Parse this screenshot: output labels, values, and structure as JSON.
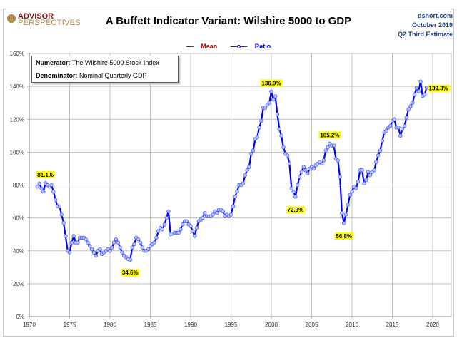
{
  "header": {
    "logo": "ADVISOR PERSPECTIVES",
    "logo_top": "ADVISOR",
    "logo_bottom": "PERSPECTIVES",
    "source": "dshort.com",
    "date": "October 2019",
    "estimate": "Q2 Third Estimate"
  },
  "note": {
    "numerator_label": "Numerator:",
    "numerator": "The Wilshire 5000 Stock Index",
    "denominator_label": "Denominator:",
    "denominator": "Nominal Quarterly GDP"
  },
  "colors": {
    "ratio": "#0000ff",
    "marker_fill": "#b8c4ff",
    "mean": "#c00000",
    "label_bg": "#ffff00"
  },
  "chart_data": {
    "type": "line",
    "title": "A Buffett Indicator Variant: Wilshire 5000 to GDP",
    "xlabel": "",
    "ylabel": "",
    "xlim": [
      1970,
      2020
    ],
    "ylim": [
      0,
      160
    ],
    "x_ticks": [
      "1970",
      "1975",
      "1980",
      "1985",
      "1990",
      "1995",
      "2000",
      "2005",
      "2010",
      "2015",
      "2020"
    ],
    "y_ticks": [
      "0%",
      "20%",
      "40%",
      "60%",
      "80%",
      "100%",
      "120%",
      "140%",
      "160%"
    ],
    "grid": true,
    "legend_placement": "top",
    "legend": [
      "Mean",
      "Ratio"
    ],
    "series": [
      {
        "name": "Ratio",
        "x": [
          1971,
          1971.25,
          1971.5,
          1971.75,
          1972,
          1972.25,
          1972.5,
          1972.75,
          1973,
          1973.25,
          1973.5,
          1973.75,
          1974,
          1974.25,
          1974.5,
          1974.75,
          1975,
          1975.25,
          1975.5,
          1975.75,
          1976,
          1976.25,
          1976.5,
          1976.75,
          1977,
          1977.25,
          1977.5,
          1977.75,
          1978,
          1978.25,
          1978.5,
          1978.75,
          1979,
          1979.25,
          1979.5,
          1979.75,
          1980,
          1980.25,
          1980.5,
          1980.75,
          1981,
          1981.25,
          1981.5,
          1981.75,
          1982,
          1982.25,
          1982.5,
          1982.75,
          1983,
          1983.25,
          1983.5,
          1983.75,
          1984,
          1984.25,
          1984.5,
          1984.75,
          1985,
          1985.25,
          1985.5,
          1985.75,
          1986,
          1986.25,
          1986.5,
          1986.75,
          1987,
          1987.25,
          1987.5,
          1987.75,
          1988,
          1988.25,
          1988.5,
          1988.75,
          1989,
          1989.25,
          1989.5,
          1989.75,
          1990,
          1990.25,
          1990.5,
          1990.75,
          1991,
          1991.25,
          1991.5,
          1991.75,
          1992,
          1992.25,
          1992.5,
          1992.75,
          1993,
          1993.25,
          1993.5,
          1993.75,
          1994,
          1994.25,
          1994.5,
          1994.75,
          1995,
          1995.25,
          1995.5,
          1995.75,
          1996,
          1996.25,
          1996.5,
          1996.75,
          1997,
          1997.25,
          1997.5,
          1997.75,
          1998,
          1998.25,
          1998.5,
          1998.75,
          1999,
          1999.25,
          1999.5,
          1999.75,
          2000,
          2000.25,
          2000.5,
          2000.75,
          2001,
          2001.25,
          2001.5,
          2001.75,
          2002,
          2002.25,
          2002.5,
          2002.75,
          2003,
          2003.25,
          2003.5,
          2003.75,
          2004,
          2004.25,
          2004.5,
          2004.75,
          2005,
          2005.25,
          2005.5,
          2005.75,
          2006,
          2006.25,
          2006.5,
          2006.75,
          2007,
          2007.25,
          2007.5,
          2007.75,
          2008,
          2008.25,
          2008.5,
          2008.75,
          2009,
          2009.25,
          2009.5,
          2009.75,
          2010,
          2010.25,
          2010.5,
          2010.75,
          2011,
          2011.25,
          2011.5,
          2011.75,
          2012,
          2012.25,
          2012.5,
          2012.75,
          2013,
          2013.25,
          2013.5,
          2013.75,
          2014,
          2014.25,
          2014.5,
          2014.75,
          2015,
          2015.25,
          2015.5,
          2015.75,
          2016,
          2016.25,
          2016.5,
          2016.75,
          2017,
          2017.25,
          2017.5,
          2017.75,
          2018,
          2018.25,
          2018.5,
          2018.75,
          2019,
          2019.25
        ],
        "values": [
          79,
          81,
          78,
          76,
          81.1,
          80,
          79,
          80,
          76,
          71,
          67,
          67,
          62,
          57,
          49,
          40,
          39,
          45,
          49,
          45,
          45,
          48,
          48,
          48,
          47,
          45,
          43,
          41,
          39,
          37,
          40,
          41,
          38,
          39,
          40,
          41,
          40,
          42,
          45,
          47,
          45,
          42,
          39,
          37,
          36,
          35,
          34.6,
          42,
          44,
          48,
          47,
          45,
          42,
          40,
          40,
          41,
          43,
          44,
          45,
          48,
          52,
          54,
          53,
          56,
          60,
          64,
          50,
          50.5,
          51,
          51,
          51,
          53,
          56,
          58,
          58,
          56,
          55,
          52,
          49,
          54,
          58,
          59,
          60,
          63,
          61,
          61,
          61,
          62,
          64,
          63,
          65,
          65,
          64,
          61,
          62,
          61,
          62,
          67,
          73,
          76,
          80,
          80,
          81,
          86,
          89,
          91,
          99,
          101,
          108,
          109,
          115,
          119,
          127,
          127,
          129,
          130,
          136.9,
          132,
          134,
          123,
          114,
          110,
          103,
          99,
          98,
          93,
          78,
          76,
          72.9,
          80,
          85,
          88,
          91,
          89,
          87,
          90,
          91,
          90,
          92,
          93,
          94,
          93,
          95,
          101,
          103,
          105.2,
          104,
          104,
          96,
          95,
          85,
          63,
          56.8,
          62,
          68,
          74,
          76,
          79,
          78,
          82,
          89,
          89,
          81,
          83,
          88,
          86,
          88,
          89,
          94,
          98,
          101,
          107,
          112,
          113,
          115,
          116,
          119,
          120,
          115,
          115,
          110,
          114,
          116,
          121,
          126,
          128,
          130,
          135,
          139,
          137,
          143,
          134,
          135,
          139.3
        ]
      }
    ],
    "annotations": [
      {
        "x": 1972,
        "y": 81.1,
        "text": "81.1%"
      },
      {
        "x": 1982.5,
        "y": 34.6,
        "text": "34.6%"
      },
      {
        "x": 2000,
        "y": 136.9,
        "text": "136.9%"
      },
      {
        "x": 2003,
        "y": 72.9,
        "text": "72.9%"
      },
      {
        "x": 2007.25,
        "y": 105.2,
        "text": "105.2%"
      },
      {
        "x": 2009,
        "y": 56.8,
        "text": "56.8%"
      },
      {
        "x": 2019.25,
        "y": 139.3,
        "text": "139.3%"
      }
    ]
  }
}
